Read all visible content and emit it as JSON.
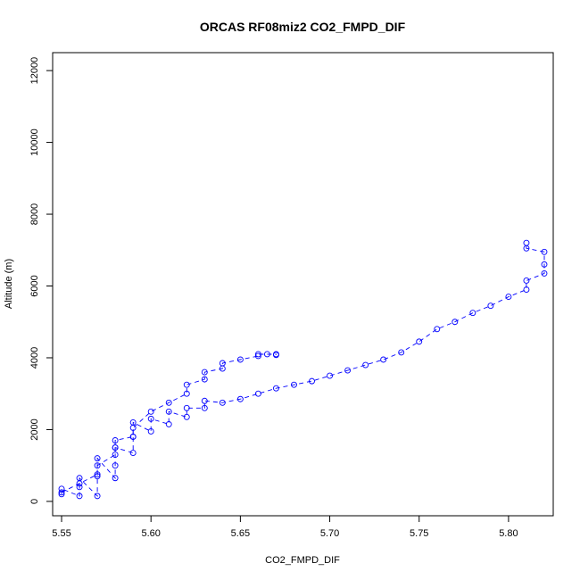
{
  "chart_data": {
    "type": "scatter",
    "title": "ORCAS RF08miz2 CO2_FMPD_DIF",
    "xlabel": "CO2_FMPD_DIF",
    "ylabel": "Altitude (m)",
    "xlim": [
      5.545,
      5.825
    ],
    "ylim": [
      -400,
      12500
    ],
    "x_ticks": [
      5.55,
      5.6,
      5.65,
      5.7,
      5.75,
      5.8
    ],
    "x_tick_labels": [
      "5.55",
      "5.60",
      "5.65",
      "5.70",
      "5.75",
      "5.80"
    ],
    "y_ticks": [
      0,
      2000,
      4000,
      6000,
      8000,
      10000,
      12000
    ],
    "y_tick_labels": [
      "0",
      "2000",
      "4000",
      "6000",
      "8000",
      "10000",
      "12000"
    ],
    "grid": false,
    "marker": "open-circle",
    "line_style": "dashed",
    "color": "#0000ff",
    "series": [
      {
        "x": [
          5.55,
          5.55,
          5.56,
          5.56,
          5.56,
          5.57,
          5.57,
          5.57,
          5.58,
          5.58,
          5.58,
          5.59,
          5.59,
          5.59,
          5.6,
          5.6,
          5.61,
          5.61,
          5.62,
          5.62,
          5.63,
          5.63,
          5.64,
          5.65,
          5.66,
          5.67,
          5.68,
          5.69,
          5.7,
          5.71,
          5.72,
          5.73,
          5.74,
          5.75,
          5.76,
          5.77,
          5.78,
          5.79,
          5.8,
          5.81,
          5.81,
          5.82,
          5.82,
          5.82,
          5.81,
          5.81
        ],
        "y": [
          200,
          350,
          150,
          400,
          650,
          150,
          700,
          1200,
          650,
          1000,
          1500,
          1350,
          1800,
          2200,
          1950,
          2300,
          2150,
          2500,
          2350,
          2600,
          2600,
          2800,
          2750,
          2850,
          3000,
          3150,
          3250,
          3350,
          3500,
          3650,
          3800,
          3950,
          4150,
          4450,
          4800,
          5000,
          5250,
          5450,
          5700,
          5900,
          6150,
          6350,
          6600,
          6950,
          7050,
          7200
        ]
      },
      {
        "x": [
          5.55,
          5.56,
          5.57,
          5.57,
          5.58,
          5.58,
          5.58,
          5.59,
          5.59,
          5.6,
          5.61,
          5.62,
          5.62,
          5.63,
          5.63,
          5.64,
          5.64,
          5.65,
          5.66,
          5.66,
          5.665,
          5.67,
          5.67
        ],
        "y": [
          250,
          500,
          750,
          1000,
          1300,
          1500,
          1700,
          1800,
          2050,
          2500,
          2750,
          3000,
          3250,
          3400,
          3600,
          3700,
          3850,
          3950,
          4050,
          4100,
          4100,
          4100,
          4080
        ]
      }
    ]
  }
}
